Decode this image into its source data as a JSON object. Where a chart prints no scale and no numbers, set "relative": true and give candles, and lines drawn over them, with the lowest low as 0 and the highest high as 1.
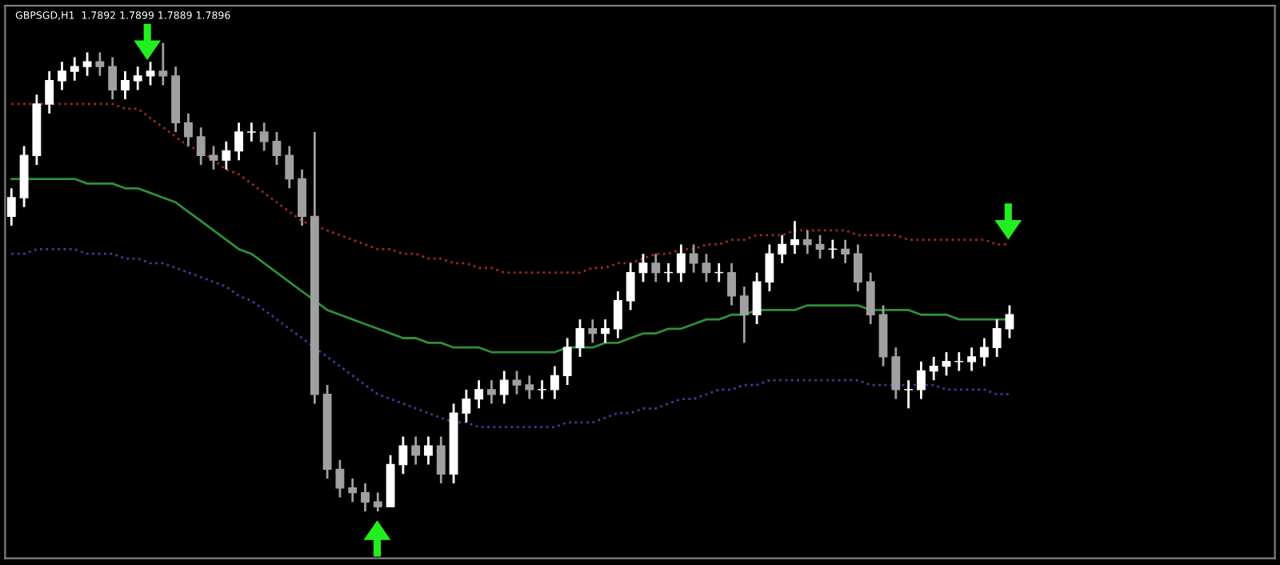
{
  "chart_data": {
    "type": "candlestick",
    "title": "GBPSGD,H1  1.7892 1.7899 1.7889 1.7896",
    "relative": true,
    "grid": false,
    "categories": [
      null,
      null,
      null,
      null,
      null,
      null,
      null,
      null,
      null,
      null,
      null,
      null,
      null,
      null,
      null,
      null,
      null,
      null,
      null,
      null,
      null,
      null,
      null,
      null,
      null,
      null,
      null,
      null,
      null,
      null,
      null,
      null,
      null,
      null,
      null,
      null,
      null,
      null,
      null,
      null,
      null,
      null,
      null,
      null,
      null,
      null,
      null,
      null,
      null,
      null,
      null,
      null,
      null,
      null,
      null,
      null,
      null,
      null,
      null,
      null,
      null,
      null,
      null,
      null,
      null,
      null,
      null,
      null,
      null,
      null,
      null,
      null,
      null,
      null,
      null,
      null,
      null,
      null,
      null,
      null
    ],
    "ohlc": [
      [
        0.63,
        0.69,
        0.61,
        0.67
      ],
      [
        0.67,
        0.78,
        0.65,
        0.76
      ],
      [
        0.76,
        0.89,
        0.74,
        0.87
      ],
      [
        0.87,
        0.94,
        0.85,
        0.92
      ],
      [
        0.92,
        0.96,
        0.9,
        0.94
      ],
      [
        0.94,
        0.97,
        0.92,
        0.95
      ],
      [
        0.95,
        0.98,
        0.93,
        0.96
      ],
      [
        0.96,
        0.98,
        0.93,
        0.95
      ],
      [
        0.95,
        0.97,
        0.88,
        0.9
      ],
      [
        0.9,
        0.94,
        0.88,
        0.92
      ],
      [
        0.92,
        0.95,
        0.9,
        0.93
      ],
      [
        0.93,
        0.96,
        0.91,
        0.94
      ],
      [
        0.94,
        1.0,
        0.91,
        0.93
      ],
      [
        0.93,
        0.95,
        0.81,
        0.83
      ],
      [
        0.83,
        0.85,
        0.78,
        0.8
      ],
      [
        0.8,
        0.82,
        0.74,
        0.76
      ],
      [
        0.76,
        0.78,
        0.73,
        0.75
      ],
      [
        0.75,
        0.79,
        0.73,
        0.77
      ],
      [
        0.77,
        0.83,
        0.75,
        0.81
      ],
      [
        0.81,
        0.83,
        0.79,
        0.81
      ],
      [
        0.81,
        0.83,
        0.77,
        0.79
      ],
      [
        0.79,
        0.81,
        0.74,
        0.76
      ],
      [
        0.76,
        0.78,
        0.69,
        0.71
      ],
      [
        0.71,
        0.73,
        0.61,
        0.63
      ],
      [
        0.63,
        0.81,
        0.23,
        0.25
      ],
      [
        0.25,
        0.27,
        0.07,
        0.09
      ],
      [
        0.09,
        0.11,
        0.03,
        0.05
      ],
      [
        0.05,
        0.07,
        0.02,
        0.04
      ],
      [
        0.04,
        0.06,
        0.0,
        0.02
      ],
      [
        0.02,
        0.04,
        0.0,
        0.01
      ],
      [
        0.01,
        0.12,
        0.01,
        0.1
      ],
      [
        0.1,
        0.16,
        0.08,
        0.14
      ],
      [
        0.14,
        0.16,
        0.1,
        0.12
      ],
      [
        0.12,
        0.16,
        0.1,
        0.14
      ],
      [
        0.14,
        0.16,
        0.06,
        0.08
      ],
      [
        0.08,
        0.23,
        0.06,
        0.21
      ],
      [
        0.21,
        0.26,
        0.19,
        0.24
      ],
      [
        0.24,
        0.28,
        0.22,
        0.26
      ],
      [
        0.26,
        0.28,
        0.23,
        0.25
      ],
      [
        0.25,
        0.3,
        0.23,
        0.28
      ],
      [
        0.28,
        0.3,
        0.25,
        0.27
      ],
      [
        0.27,
        0.29,
        0.24,
        0.26
      ],
      [
        0.26,
        0.28,
        0.24,
        0.26
      ],
      [
        0.26,
        0.31,
        0.24,
        0.29
      ],
      [
        0.29,
        0.37,
        0.27,
        0.35
      ],
      [
        0.35,
        0.41,
        0.33,
        0.39
      ],
      [
        0.39,
        0.41,
        0.36,
        0.38
      ],
      [
        0.38,
        0.41,
        0.36,
        0.39
      ],
      [
        0.39,
        0.47,
        0.37,
        0.45
      ],
      [
        0.45,
        0.53,
        0.43,
        0.51
      ],
      [
        0.51,
        0.55,
        0.49,
        0.53
      ],
      [
        0.53,
        0.55,
        0.49,
        0.51
      ],
      [
        0.51,
        0.53,
        0.49,
        0.51
      ],
      [
        0.51,
        0.57,
        0.49,
        0.55
      ],
      [
        0.55,
        0.57,
        0.51,
        0.53
      ],
      [
        0.53,
        0.55,
        0.49,
        0.51
      ],
      [
        0.51,
        0.53,
        0.49,
        0.51
      ],
      [
        0.51,
        0.53,
        0.44,
        0.46
      ],
      [
        0.46,
        0.48,
        0.36,
        0.42
      ],
      [
        0.42,
        0.51,
        0.4,
        0.49
      ],
      [
        0.49,
        0.57,
        0.47,
        0.55
      ],
      [
        0.55,
        0.59,
        0.53,
        0.57
      ],
      [
        0.57,
        0.62,
        0.55,
        0.58
      ],
      [
        0.58,
        0.6,
        0.55,
        0.57
      ],
      [
        0.57,
        0.59,
        0.54,
        0.56
      ],
      [
        0.56,
        0.58,
        0.54,
        0.56
      ],
      [
        0.56,
        0.58,
        0.53,
        0.55
      ],
      [
        0.55,
        0.57,
        0.47,
        0.49
      ],
      [
        0.49,
        0.51,
        0.4,
        0.42
      ],
      [
        0.42,
        0.44,
        0.31,
        0.33
      ],
      [
        0.33,
        0.35,
        0.24,
        0.26
      ],
      [
        0.26,
        0.28,
        0.22,
        0.26
      ],
      [
        0.26,
        0.32,
        0.24,
        0.3
      ],
      [
        0.3,
        0.33,
        0.28,
        0.31
      ],
      [
        0.31,
        0.34,
        0.29,
        0.32
      ],
      [
        0.32,
        0.34,
        0.3,
        0.32
      ],
      [
        0.32,
        0.35,
        0.3,
        0.33
      ],
      [
        0.33,
        0.37,
        0.31,
        0.35
      ],
      [
        0.35,
        0.41,
        0.33,
        0.39
      ],
      [
        0.39,
        0.44,
        0.37,
        0.42
      ]
    ],
    "colors": [
      "#ffffff",
      "#ffffff",
      "#ffffff",
      "#ffffff",
      "#ffffff",
      "#ffffff",
      "#ffffff",
      "#a0a0a0",
      "#a0a0a0",
      "#ffffff",
      "#ffffff",
      "#ffffff",
      "#a0a0a0",
      "#a0a0a0",
      "#a0a0a0",
      "#a0a0a0",
      "#a0a0a0",
      "#ffffff",
      "#ffffff",
      "#ffffff",
      "#a0a0a0",
      "#a0a0a0",
      "#a0a0a0",
      "#a0a0a0",
      "#a0a0a0",
      "#a0a0a0",
      "#a0a0a0",
      "#a0a0a0",
      "#a0a0a0",
      "#a0a0a0",
      "#ffffff",
      "#ffffff",
      "#a0a0a0",
      "#ffffff",
      "#a0a0a0",
      "#ffffff",
      "#ffffff",
      "#ffffff",
      "#a0a0a0",
      "#ffffff",
      "#a0a0a0",
      "#a0a0a0",
      "#ffffff",
      "#ffffff",
      "#ffffff",
      "#ffffff",
      "#a0a0a0",
      "#ffffff",
      "#ffffff",
      "#ffffff",
      "#ffffff",
      "#a0a0a0",
      "#ffffff",
      "#ffffff",
      "#a0a0a0",
      "#a0a0a0",
      "#ffffff",
      "#a0a0a0",
      "#a0a0a0",
      "#ffffff",
      "#ffffff",
      "#ffffff",
      "#ffffff",
      "#a0a0a0",
      "#a0a0a0",
      "#ffffff",
      "#a0a0a0",
      "#a0a0a0",
      "#a0a0a0",
      "#a0a0a0",
      "#a0a0a0",
      "#ffffff",
      "#ffffff",
      "#ffffff",
      "#ffffff",
      "#ffffff",
      "#ffffff",
      "#ffffff",
      "#ffffff",
      "#ffffff"
    ],
    "series": [
      {
        "type": "line",
        "color": "#9b2a22",
        "line_style": "dotted",
        "values": [
          0.87,
          0.87,
          0.87,
          0.87,
          0.87,
          0.87,
          0.87,
          0.87,
          0.87,
          0.86,
          0.86,
          0.84,
          0.82,
          0.8,
          0.78,
          0.77,
          0.75,
          0.73,
          0.72,
          0.7,
          0.68,
          0.66,
          0.64,
          0.62,
          0.61,
          0.6,
          0.59,
          0.58,
          0.57,
          0.56,
          0.56,
          0.55,
          0.55,
          0.54,
          0.54,
          0.53,
          0.53,
          0.52,
          0.52,
          0.51,
          0.51,
          0.51,
          0.51,
          0.51,
          0.51,
          0.51,
          0.52,
          0.52,
          0.53,
          0.53,
          0.54,
          0.55,
          0.55,
          0.56,
          0.56,
          0.57,
          0.57,
          0.58,
          0.58,
          0.59,
          0.59,
          0.59,
          0.6,
          0.6,
          0.6,
          0.6,
          0.6,
          0.59,
          0.59,
          0.59,
          0.59,
          0.58,
          0.58,
          0.58,
          0.58,
          0.58,
          0.58,
          0.58,
          0.57,
          0.57
        ]
      },
      {
        "type": "line",
        "color": "#2f8f3a",
        "line_style": "solid",
        "values": [
          0.71,
          0.71,
          0.71,
          0.71,
          0.71,
          0.71,
          0.7,
          0.7,
          0.7,
          0.69,
          0.69,
          0.68,
          0.67,
          0.66,
          0.64,
          0.62,
          0.6,
          0.58,
          0.56,
          0.55,
          0.53,
          0.51,
          0.49,
          0.47,
          0.45,
          0.43,
          0.42,
          0.41,
          0.4,
          0.39,
          0.38,
          0.37,
          0.37,
          0.36,
          0.36,
          0.35,
          0.35,
          0.35,
          0.34,
          0.34,
          0.34,
          0.34,
          0.34,
          0.34,
          0.35,
          0.35,
          0.35,
          0.36,
          0.36,
          0.37,
          0.38,
          0.38,
          0.39,
          0.39,
          0.4,
          0.41,
          0.41,
          0.42,
          0.42,
          0.43,
          0.43,
          0.43,
          0.43,
          0.44,
          0.44,
          0.44,
          0.44,
          0.44,
          0.43,
          0.43,
          0.43,
          0.43,
          0.42,
          0.42,
          0.42,
          0.41,
          0.41,
          0.41,
          0.41,
          0.41
        ]
      },
      {
        "type": "line",
        "color": "#3b3f9a",
        "line_style": "dotted",
        "values": [
          0.55,
          0.55,
          0.56,
          0.56,
          0.56,
          0.56,
          0.55,
          0.55,
          0.55,
          0.54,
          0.54,
          0.53,
          0.53,
          0.52,
          0.51,
          0.5,
          0.49,
          0.48,
          0.46,
          0.45,
          0.43,
          0.41,
          0.39,
          0.37,
          0.35,
          0.33,
          0.31,
          0.29,
          0.27,
          0.25,
          0.24,
          0.23,
          0.22,
          0.21,
          0.2,
          0.19,
          0.19,
          0.18,
          0.18,
          0.18,
          0.18,
          0.18,
          0.18,
          0.18,
          0.19,
          0.19,
          0.19,
          0.2,
          0.21,
          0.21,
          0.22,
          0.22,
          0.23,
          0.24,
          0.24,
          0.25,
          0.26,
          0.26,
          0.27,
          0.27,
          0.28,
          0.28,
          0.28,
          0.28,
          0.28,
          0.28,
          0.28,
          0.28,
          0.27,
          0.27,
          0.27,
          0.27,
          0.27,
          0.27,
          0.26,
          0.26,
          0.26,
          0.26,
          0.25,
          0.25
        ]
      }
    ]
  }
}
